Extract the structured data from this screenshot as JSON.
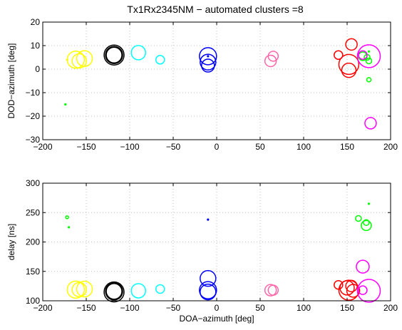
{
  "title": "Tx1Rx2345NM − automated clusters =8",
  "chart_data": [
    {
      "type": "scatter",
      "xlabel": "",
      "ylabel": "DOD−azimuth [deg]",
      "xlim": [
        -200,
        200
      ],
      "ylim": [
        -30,
        20
      ],
      "xticks": [
        -200,
        -150,
        -100,
        -50,
        0,
        50,
        100,
        150,
        200
      ],
      "yticks": [
        -30,
        -20,
        -10,
        0,
        10,
        20
      ],
      "xtick_labels": [
        "−200",
        "−150",
        "−100",
        "−50",
        "0",
        "50",
        "100",
        "150",
        "200"
      ],
      "ytick_labels": [
        "−30",
        "−20",
        "−10",
        "0",
        "10",
        "20"
      ],
      "grid": true,
      "series": [
        {
          "color": "#ffff00",
          "points": [
            [
              -172,
              4,
              1
            ],
            [
              -162,
              4,
              12
            ],
            [
              -158,
              3.5,
              10
            ],
            [
              -152,
              4.5,
              11
            ]
          ]
        },
        {
          "color": "#000000",
          "points": [
            [
              -118,
              6,
              14
            ],
            [
              -118,
              6,
              11
            ],
            [
              -118,
              6,
              12
            ]
          ]
        },
        {
          "color": "#00ffff",
          "points": [
            [
              -90,
              7,
              10
            ],
            [
              -65,
              4,
              6
            ]
          ]
        },
        {
          "color": "#0000ff",
          "points": [
            [
              -10,
              5.5,
              1
            ],
            [
              -10,
              5.5,
              12
            ],
            [
              -10,
              3,
              11
            ],
            [
              -10,
              1.5,
              9
            ]
          ]
        },
        {
          "color": "#ff66aa",
          "points": [
            [
              65,
              5.5,
              7
            ],
            [
              62,
              3.5,
              8
            ]
          ]
        },
        {
          "color": "#ff0000",
          "points": [
            [
              140,
              6,
              6
            ],
            [
              155,
              10.5,
              8
            ],
            [
              152,
              2,
              14
            ],
            [
              152,
              -0.5,
              10
            ]
          ]
        },
        {
          "color": "#00ff00",
          "points": [
            [
              -174,
              -15,
              1
            ],
            [
              175,
              7.5,
              1
            ],
            [
              173,
              5,
              4
            ],
            [
              175,
              3.5,
              4
            ],
            [
              175,
              -4.5,
              3
            ],
            [
              168,
              5.5,
              6
            ]
          ]
        },
        {
          "color": "#ff00ff",
          "points": [
            [
              175,
              5.5,
              16
            ],
            [
              168,
              6,
              6
            ],
            [
              177,
              -23,
              8
            ]
          ]
        }
      ]
    },
    {
      "type": "scatter",
      "xlabel": "DOA−azimuth [deg]",
      "ylabel": "delay [ns]",
      "xlim": [
        -200,
        200
      ],
      "ylim": [
        100,
        300
      ],
      "xticks": [
        -200,
        -150,
        -100,
        -50,
        0,
        50,
        100,
        150,
        200
      ],
      "yticks": [
        100,
        150,
        200,
        250,
        300
      ],
      "xtick_labels": [
        "−200",
        "−150",
        "−100",
        "−50",
        "0",
        "50",
        "100",
        "150",
        "200"
      ],
      "ytick_labels": [
        "100",
        "150",
        "200",
        "250",
        "300"
      ],
      "grid": true,
      "series": [
        {
          "color": "#ffff00",
          "points": [
            [
              -162,
              119,
              12
            ],
            [
              -158,
              119,
              10
            ],
            [
              -152,
              120,
              11
            ]
          ]
        },
        {
          "color": "#000000",
          "points": [
            [
              -118,
              115,
              14
            ],
            [
              -118,
              116,
              11
            ],
            [
              -118,
              116,
              12
            ]
          ]
        },
        {
          "color": "#00ffff",
          "points": [
            [
              -90,
              117,
              10
            ],
            [
              -65,
              120,
              6
            ]
          ]
        },
        {
          "color": "#0000ff",
          "points": [
            [
              -10,
              238,
              1
            ],
            [
              -10,
              138,
              11
            ],
            [
              -10,
              118,
              12
            ],
            [
              -10,
              115,
              11
            ]
          ]
        },
        {
          "color": "#ff66aa",
          "points": [
            [
              62,
              118,
              8
            ],
            [
              65,
              118,
              7
            ]
          ]
        },
        {
          "color": "#ff0000",
          "points": [
            [
              140,
              127,
              6
            ],
            [
              155,
              125,
              8
            ],
            [
              152,
              118,
              14
            ],
            [
              150,
              122,
              10
            ],
            [
              157,
              117,
              9
            ]
          ]
        },
        {
          "color": "#00ff00",
          "points": [
            [
              -172,
              242,
              2
            ],
            [
              -170,
              225,
              1
            ],
            [
              175,
              265,
              1
            ],
            [
              163,
              240,
              4
            ],
            [
              172,
              233,
              4
            ],
            [
              172,
              228,
              7
            ]
          ]
        },
        {
          "color": "#ff00ff",
          "points": [
            [
              168,
              158,
              9
            ],
            [
              175,
              117,
              16
            ],
            [
              168,
              118,
              6
            ]
          ]
        }
      ]
    }
  ]
}
